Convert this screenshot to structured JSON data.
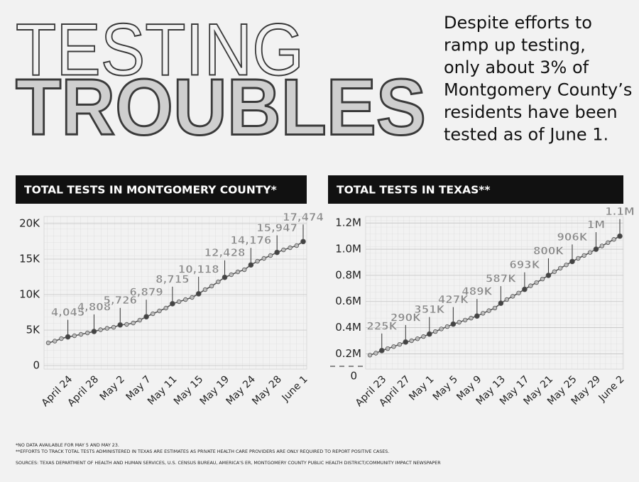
{
  "header": {
    "title_line1": "TESTING",
    "title_line2": "TROUBLES",
    "blurb": [
      "Despite efforts to",
      "ramp up testing,",
      "only about 3% of",
      "Montgomery County’s",
      "residents have been",
      "tested as of June 1."
    ]
  },
  "chart_data": [
    {
      "type": "line",
      "title": "TOTAL TESTS IN MONTGOMERY COUNTY*",
      "color": "#555555",
      "categories": [
        null,
        null,
        null,
        "April 24",
        null,
        null,
        null,
        "April 28",
        null,
        null,
        null,
        "May 2",
        null,
        null,
        null,
        "May 7",
        null,
        null,
        null,
        "May 11",
        null,
        null,
        null,
        "May 15",
        null,
        null,
        null,
        "May 19",
        null,
        null,
        null,
        "May 24",
        null,
        null,
        null,
        "May 28",
        null,
        null,
        null,
        "June 1"
      ],
      "values": [
        3200,
        3450,
        3800,
        4045,
        4200,
        4400,
        4600,
        4808,
        5050,
        5250,
        5400,
        5726,
        5800,
        6000,
        6400,
        6879,
        7300,
        7700,
        8100,
        8715,
        9000,
        9300,
        9600,
        10118,
        10700,
        11200,
        11800,
        12428,
        12800,
        13200,
        13500,
        14176,
        14700,
        15100,
        15500,
        15947,
        16300,
        16600,
        16900,
        17474
      ],
      "value_labels": [
        null,
        null,
        null,
        "4,045",
        null,
        null,
        null,
        "4,808",
        null,
        null,
        null,
        "5,726",
        null,
        null,
        null,
        "6,879",
        null,
        null,
        null,
        "8,715",
        null,
        null,
        null,
        "10,118",
        null,
        null,
        null,
        "12,428",
        null,
        null,
        null,
        "14,176",
        null,
        null,
        null,
        "15,947",
        null,
        null,
        null,
        "17,474"
      ],
      "ylim": [
        0,
        21000
      ],
      "yticks": [
        0,
        {
          "value": 5000,
          "label": "5K"
        },
        {
          "value": 10000,
          "label": "10K"
        },
        {
          "value": 15000,
          "label": "15K"
        },
        {
          "value": 20000,
          "label": "20K"
        }
      ],
      "grid": true
    },
    {
      "type": "line",
      "title": "TOTAL TESTS IN TEXAS**",
      "color": "#555555",
      "categories": [
        null,
        null,
        "April 23",
        null,
        null,
        null,
        "April 27",
        null,
        null,
        null,
        "May 1",
        null,
        null,
        null,
        "May 5",
        null,
        null,
        null,
        "May 9",
        null,
        null,
        null,
        "May 13",
        null,
        null,
        null,
        "May 17",
        null,
        null,
        null,
        "May 21",
        null,
        null,
        null,
        "May 25",
        null,
        null,
        null,
        "May 29",
        null,
        null,
        null,
        "June 2"
      ],
      "values": [
        190000,
        205000,
        225000,
        240000,
        255000,
        272000,
        290000,
        300000,
        315000,
        332000,
        351000,
        370000,
        390000,
        408000,
        427000,
        442000,
        458000,
        473000,
        489000,
        510000,
        530000,
        550000,
        587000,
        615000,
        640000,
        665000,
        693000,
        720000,
        745000,
        772000,
        800000,
        828000,
        855000,
        880000,
        906000,
        930000,
        952000,
        975000,
        1000000,
        1025000,
        1050000,
        1075000,
        1100000
      ],
      "value_labels": [
        null,
        null,
        "225K",
        null,
        null,
        null,
        "290K",
        null,
        null,
        null,
        "351K",
        null,
        null,
        null,
        "427K",
        null,
        null,
        null,
        "489K",
        null,
        null,
        null,
        "587K",
        null,
        null,
        null,
        "693K",
        null,
        null,
        null,
        "800K",
        null,
        null,
        null,
        "906K",
        null,
        null,
        null,
        "1M",
        null,
        null,
        null,
        "1.1M"
      ],
      "ylim": [
        110000,
        1250000
      ],
      "yticks": [
        0,
        {
          "value": 200000,
          "label": "0.2M"
        },
        {
          "value": 400000,
          "label": "0.4M"
        },
        {
          "value": 600000,
          "label": "0.6M"
        },
        {
          "value": 800000,
          "label": "0.8M"
        },
        {
          "value": 1000000,
          "label": "1.0M"
        },
        {
          "value": 1200000,
          "label": "1.2M"
        }
      ],
      "grid": true
    }
  ],
  "footnotes": [
    "*NO DATA AVAILABLE FOR MAY 5 AND MAY 23.",
    "**EFFORTS TO TRACK TOTAL TESTS ADMINISTERED IN TEXAS ARE ESTIMATES AS PRIVATE HEALTH CARE PROVIDERS ARE ONLY REQUIRED TO REPORT POSITIVE CASES.",
    "SOURCES: TEXAS DEPARTMENT OF HEALTH AND HUMAN SERVICES, U.S. CENSUS BUREAU, AMERICA’S ER, MONTGOMERY COUNTY PUBLIC HEALTH DISTRICT/COMMUNITY IMPACT NEWSPAPER"
  ]
}
